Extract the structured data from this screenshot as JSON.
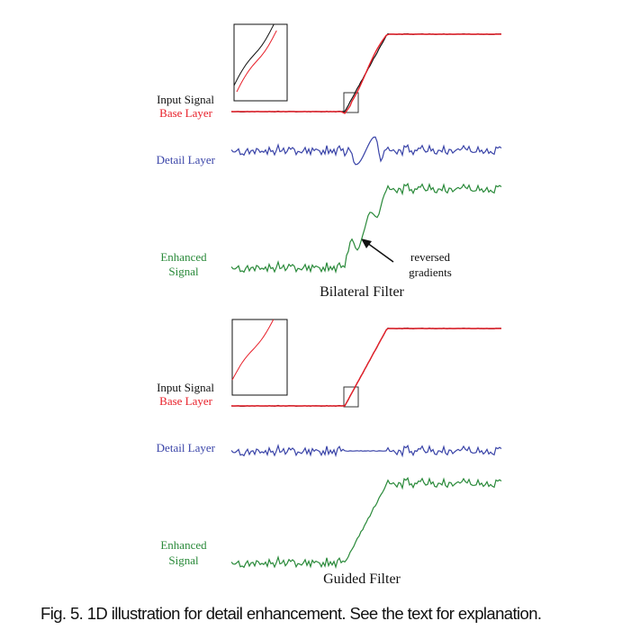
{
  "colors": {
    "input": "#111111",
    "base": "#e8202a",
    "detail": "#3a44a8",
    "enhanced": "#2a8a3a"
  },
  "panels": [
    {
      "title": "Bilateral Filter",
      "labels": {
        "input": "Input Signal",
        "base": "Base Layer",
        "detail": "Detail Layer",
        "enhanced_line1": "Enhanced",
        "enhanced_line2": "Signal"
      },
      "annotation": {
        "line1": "reversed",
        "line2": "gradients"
      }
    },
    {
      "title": "Guided Filter",
      "labels": {
        "input": "Input Signal",
        "base": "Base Layer",
        "detail": "Detail Layer",
        "enhanced_line1": "Enhanced",
        "enhanced_line2": "Signal"
      }
    }
  ],
  "caption": "Fig. 5. 1D illustration for detail enhancement. See the text for explanation."
}
